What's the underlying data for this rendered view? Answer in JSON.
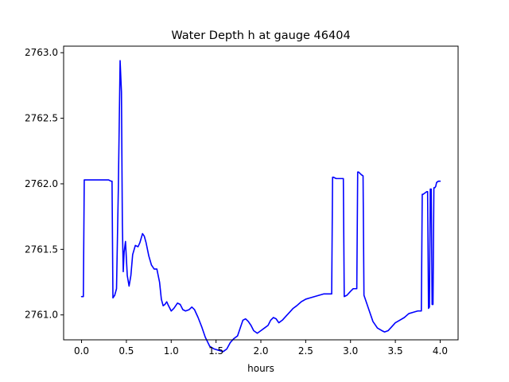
{
  "chart_data": {
    "type": "line",
    "title": "Water Depth h at gauge 46404",
    "xlabel": "hours",
    "ylabel": "",
    "xlim": [
      -0.2,
      4.2
    ],
    "ylim": [
      2760.81,
      2763.05
    ],
    "grid": false,
    "x_ticks": [
      0.0,
      0.5,
      1.0,
      1.5,
      2.0,
      2.5,
      3.0,
      3.5,
      4.0
    ],
    "x_tick_labels": [
      "0.0",
      "0.5",
      "1.0",
      "1.5",
      "2.0",
      "2.5",
      "3.0",
      "3.5",
      "4.0"
    ],
    "y_ticks": [
      2761.0,
      2761.5,
      2762.0,
      2762.5,
      2763.0
    ],
    "y_tick_labels": [
      "2761.0",
      "2761.5",
      "2762.0",
      "2762.5",
      "2763.0"
    ],
    "series": [
      {
        "color": "#0000ff",
        "x": [
          0.0,
          0.02,
          0.03,
          0.1,
          0.2,
          0.3,
          0.33,
          0.34,
          0.35,
          0.37,
          0.39,
          0.41,
          0.43,
          0.445,
          0.455,
          0.465,
          0.475,
          0.49,
          0.51,
          0.53,
          0.55,
          0.57,
          0.6,
          0.63,
          0.65,
          0.68,
          0.7,
          0.72,
          0.75,
          0.78,
          0.81,
          0.84,
          0.87,
          0.89,
          0.91,
          0.93,
          0.95,
          0.97,
          1.0,
          1.03,
          1.07,
          1.1,
          1.13,
          1.16,
          1.2,
          1.23,
          1.26,
          1.3,
          1.34,
          1.38,
          1.43,
          1.48,
          1.53,
          1.58,
          1.62,
          1.66,
          1.7,
          1.74,
          1.77,
          1.8,
          1.83,
          1.86,
          1.89,
          1.92,
          1.96,
          2.0,
          2.04,
          2.08,
          2.11,
          2.14,
          2.17,
          2.2,
          2.24,
          2.28,
          2.32,
          2.36,
          2.4,
          2.45,
          2.5,
          2.55,
          2.6,
          2.65,
          2.7,
          2.75,
          2.79,
          2.8,
          2.81,
          2.84,
          2.88,
          2.91,
          2.92,
          2.93,
          2.96,
          3.0,
          3.03,
          3.06,
          3.07,
          3.08,
          3.09,
          3.12,
          3.14,
          3.15,
          3.16,
          3.2,
          3.25,
          3.3,
          3.35,
          3.38,
          3.42,
          3.46,
          3.5,
          3.55,
          3.6,
          3.65,
          3.7,
          3.75,
          3.79,
          3.8,
          3.81,
          3.83,
          3.85,
          3.86,
          3.87,
          3.88,
          3.89,
          3.9,
          3.91,
          3.92,
          3.93,
          3.94,
          3.95,
          3.96,
          3.98,
          4.0
        ],
        "y": [
          2761.14,
          2761.14,
          2762.03,
          2762.03,
          2762.03,
          2762.03,
          2762.02,
          2762.02,
          2761.13,
          2761.15,
          2761.2,
          2761.95,
          2762.94,
          2762.7,
          2761.7,
          2761.33,
          2761.48,
          2761.56,
          2761.3,
          2761.22,
          2761.3,
          2761.46,
          2761.53,
          2761.52,
          2761.55,
          2761.62,
          2761.6,
          2761.55,
          2761.45,
          2761.38,
          2761.35,
          2761.35,
          2761.25,
          2761.12,
          2761.07,
          2761.08,
          2761.1,
          2761.07,
          2761.03,
          2761.05,
          2761.09,
          2761.08,
          2761.04,
          2761.03,
          2761.04,
          2761.06,
          2761.04,
          2760.98,
          2760.91,
          2760.83,
          2760.76,
          2760.74,
          2760.73,
          2760.72,
          2760.74,
          2760.79,
          2760.82,
          2760.84,
          2760.9,
          2760.96,
          2760.97,
          2760.95,
          2760.92,
          2760.88,
          2760.86,
          2760.88,
          2760.9,
          2760.92,
          2760.96,
          2760.98,
          2760.97,
          2760.94,
          2760.96,
          2760.99,
          2761.02,
          2761.05,
          2761.07,
          2761.1,
          2761.12,
          2761.13,
          2761.14,
          2761.15,
          2761.16,
          2761.16,
          2761.16,
          2762.05,
          2762.05,
          2762.04,
          2762.04,
          2762.04,
          2762.04,
          2761.14,
          2761.15,
          2761.18,
          2761.2,
          2761.2,
          2761.2,
          2762.09,
          2762.09,
          2762.07,
          2762.06,
          2761.15,
          2761.13,
          2761.05,
          2760.95,
          2760.9,
          2760.88,
          2760.87,
          2760.88,
          2760.91,
          2760.94,
          2760.96,
          2760.98,
          2761.01,
          2761.02,
          2761.03,
          2761.03,
          2761.92,
          2761.92,
          2761.93,
          2761.94,
          2761.94,
          2761.05,
          2761.06,
          2761.96,
          2761.96,
          2761.08,
          2761.08,
          2761.97,
          2761.97,
          2761.98,
          2762.01,
          2762.02,
          2762.02
        ]
      }
    ]
  }
}
